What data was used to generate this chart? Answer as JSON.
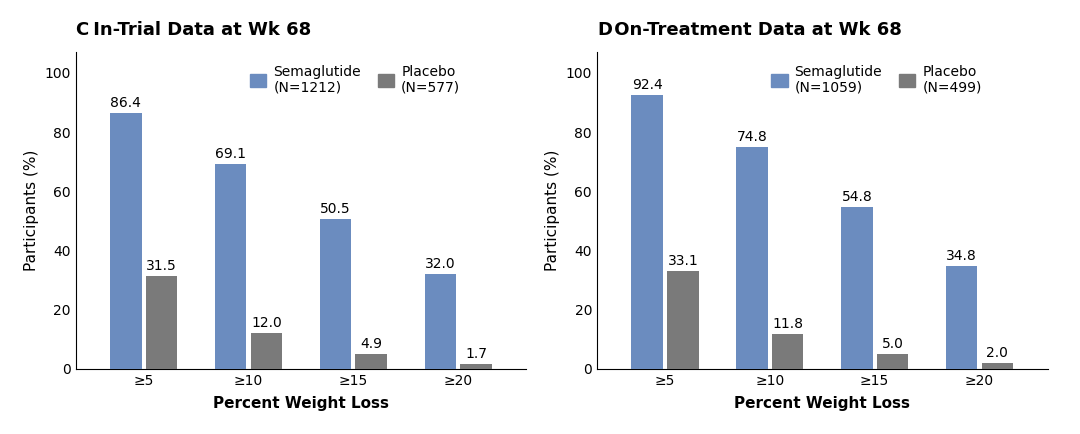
{
  "panel_C": {
    "title_bold": "C",
    "title_rest": " In-Trial Data at Wk 68",
    "categories": [
      "≥5",
      "≥10",
      "≥15",
      "≥20"
    ],
    "semaglutide": [
      86.4,
      69.1,
      50.5,
      32.0
    ],
    "placebo": [
      31.5,
      12.0,
      4.9,
      1.7
    ],
    "sema_label_line1": "Semaglutide",
    "sema_label_line2": "(N=1212)",
    "placebo_label_line1": "Placebo",
    "placebo_label_line2": "(N=577)",
    "xlabel": "Percent Weight Loss",
    "ylabel": "Participants (%)"
  },
  "panel_D": {
    "title_bold": "D",
    "title_rest": " On-Treatment Data at Wk 68",
    "categories": [
      "≥5",
      "≥10",
      "≥15",
      "≥20"
    ],
    "semaglutide": [
      92.4,
      74.8,
      54.8,
      34.8
    ],
    "placebo": [
      33.1,
      11.8,
      5.0,
      2.0
    ],
    "sema_label_line1": "Semaglutide",
    "sema_label_line2": "(N=1059)",
    "placebo_label_line1": "Placebo",
    "placebo_label_line2": "(N=499)",
    "xlabel": "Percent Weight Loss",
    "ylabel": "Participants (%)"
  },
  "sema_color": "#6B8CBF",
  "placebo_color": "#7A7A7A",
  "bg_color": "#FFFFFF",
  "bar_width": 0.3,
  "ylim": [
    0,
    107
  ],
  "yticks": [
    0,
    20,
    40,
    60,
    80,
    100
  ],
  "title_fontsize": 13,
  "label_fontsize": 11,
  "tick_fontsize": 10,
  "annot_fontsize": 10,
  "legend_fontsize": 10
}
